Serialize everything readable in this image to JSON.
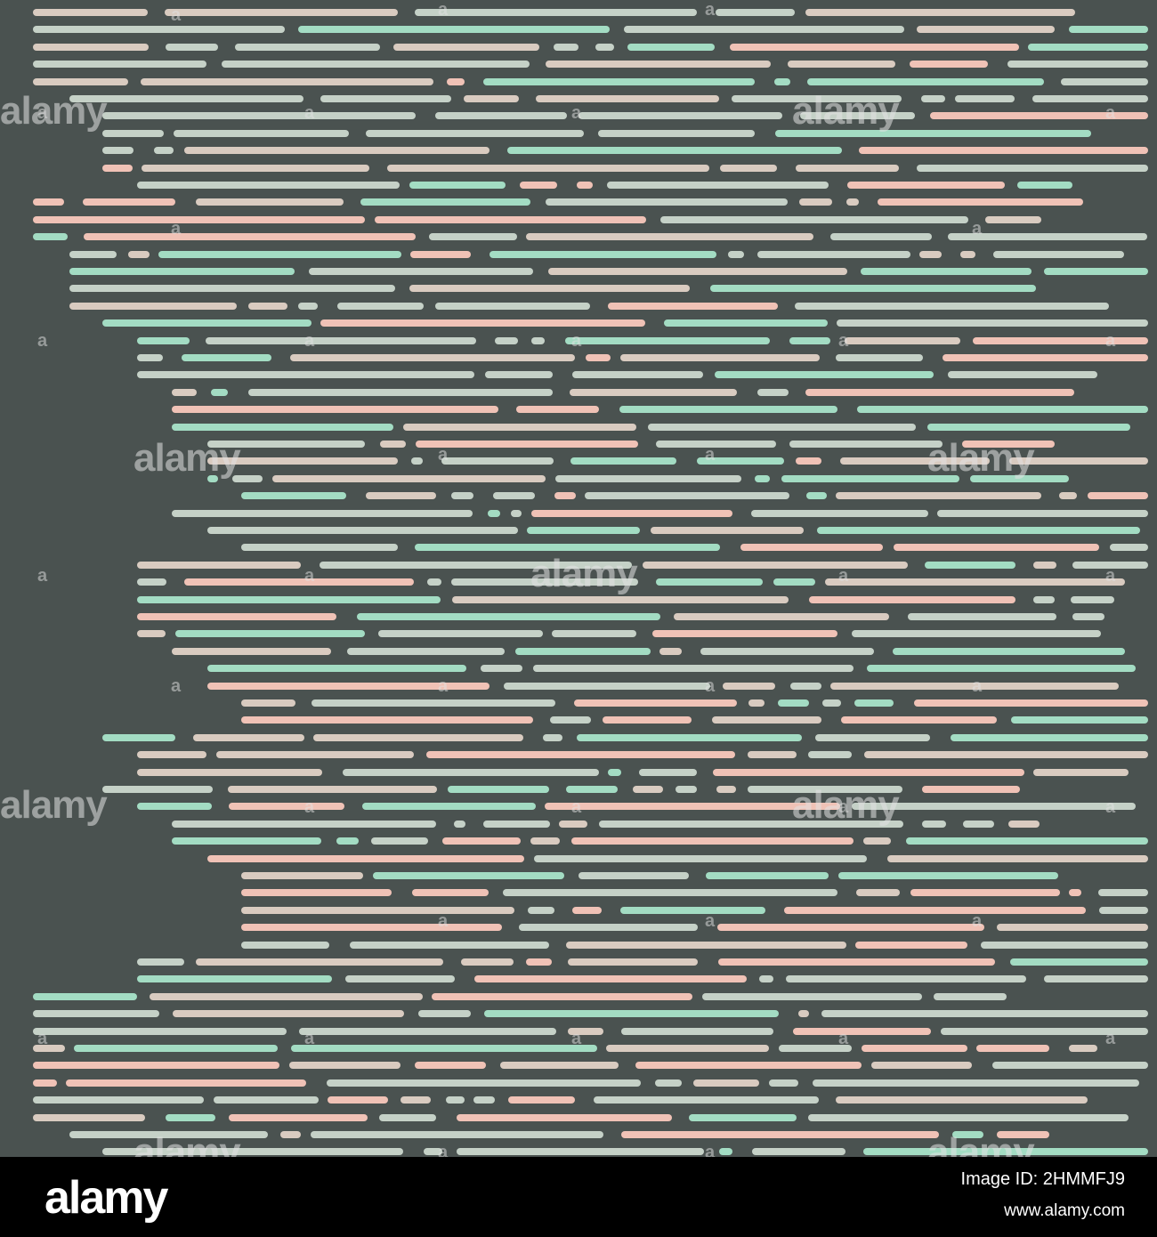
{
  "palette": {
    "background": "#4a5250",
    "sage": "#c5d1c7",
    "mint": "#a3dcc3",
    "pink": "#f0c2b6",
    "beige": "#d9cbc0"
  },
  "watermark": {
    "text": "alamy",
    "glyph": "a"
  },
  "footer": {
    "logo": "alamy",
    "image_id": "Image ID: 2HMMFJ9",
    "url": "www.alamy.com"
  }
}
